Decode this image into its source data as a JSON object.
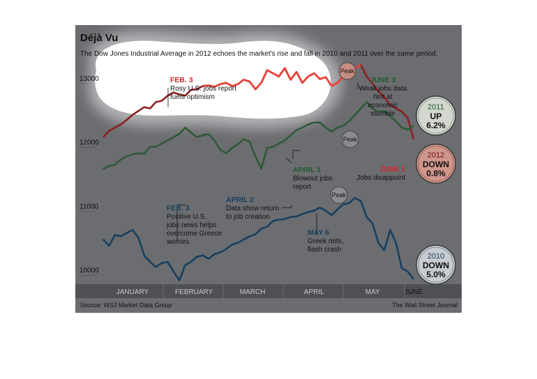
{
  "title": "Déjà Vu",
  "subtitle": "The Dow Jones Industrial Average in 2012 echoes the market's rise and fall in 2010 and 2011 over the same period.",
  "source": "Source: WSJ Market Data Group",
  "credit": "The Wall Street Journal",
  "colors": {
    "background": "#6b6d70",
    "s2012": "#8b1f1f",
    "s2012_highlight": "#e8443c",
    "s2011": "#2f5a37",
    "s2010": "#17405f",
    "axis_band": "#4e5053"
  },
  "annotations": {
    "feb3_2012": {
      "date": "FEB. 3",
      "text": [
        "Rosy U.S. jobs report",
        "fuels optimism"
      ]
    },
    "june3_2011": {
      "date": "JUNE 3",
      "text": [
        "Weak jobs data",
        "hint at",
        "economic",
        "stumble"
      ]
    },
    "april1_2011": {
      "date": "APRIL 1",
      "text": [
        "Blowout jobs",
        "report"
      ]
    },
    "june1_2012": {
      "date": "JUNE 1",
      "text": [
        "Jobs disappoint"
      ]
    },
    "feb3_2010": {
      "date": "FEB. 3",
      "text": [
        "Positive U.S.",
        "jobs news helps",
        "overcome Greece",
        "worries"
      ]
    },
    "april2_2010": {
      "date": "APRIL 2",
      "text": [
        "Data show return",
        "to job creation"
      ]
    },
    "may6_2010": {
      "date": "MAY 6",
      "text": [
        "Greek riots,",
        "flash crash"
      ]
    },
    "peak_label": "Peak"
  },
  "badges": [
    {
      "year": "2011",
      "dir": "UP",
      "pct": "6.2%"
    },
    {
      "year": "2012",
      "dir": "DOWN",
      "pct": "0.8%"
    },
    {
      "year": "2010",
      "dir": "DOWN",
      "pct": "5.0%"
    }
  ],
  "chart_data": {
    "type": "line",
    "x_label_note": "",
    "x_range": [
      0,
      106
    ],
    "x_months": [
      {
        "label": "JANUARY",
        "x": 10
      },
      {
        "label": "FEBRUARY",
        "x": 31
      },
      {
        "label": "MARCH",
        "x": 51
      },
      {
        "label": "APRIL",
        "x": 72
      },
      {
        "label": "MAY",
        "x": 92
      },
      {
        "label": "JUNE",
        "x": 106
      }
    ],
    "y_range": [
      9850,
      13250
    ],
    "y_ticks": [
      10000,
      11000,
      12000,
      13000
    ],
    "series": [
      {
        "name": "2012",
        "color_key": "s2012",
        "values": [
          [
            0,
            12150
          ],
          [
            2,
            12250
          ],
          [
            4,
            12300
          ],
          [
            6,
            12350
          ],
          [
            8,
            12420
          ],
          [
            10,
            12500
          ],
          [
            12,
            12560
          ],
          [
            14,
            12620
          ],
          [
            16,
            12600
          ],
          [
            18,
            12700
          ],
          [
            20,
            12720
          ],
          [
            22,
            12800
          ],
          [
            24,
            12850
          ],
          [
            26,
            12820
          ],
          [
            28,
            12800
          ],
          [
            30,
            12890
          ],
          [
            32,
            12900
          ],
          [
            34,
            12950
          ],
          [
            36,
            12960
          ],
          [
            38,
            12940
          ],
          [
            40,
            12980
          ],
          [
            42,
            13000
          ],
          [
            44,
            12950
          ],
          [
            46,
            12980
          ],
          [
            48,
            13050
          ],
          [
            50,
            13020
          ],
          [
            52,
            12900
          ],
          [
            54,
            13000
          ],
          [
            56,
            13200
          ],
          [
            58,
            13150
          ],
          [
            60,
            13100
          ],
          [
            62,
            13230
          ],
          [
            64,
            13050
          ],
          [
            66,
            13170
          ],
          [
            68,
            13000
          ],
          [
            70,
            13100
          ],
          [
            72,
            13150
          ],
          [
            74,
            13060
          ],
          [
            76,
            13090
          ],
          [
            78,
            12950
          ],
          [
            80,
            13000
          ],
          [
            82,
            13100
          ],
          [
            84,
            13150
          ],
          [
            86,
            13230
          ],
          [
            88,
            13280
          ],
          [
            90,
            13100
          ],
          [
            92,
            12990
          ],
          [
            94,
            12870
          ],
          [
            96,
            12780
          ],
          [
            98,
            12650
          ],
          [
            100,
            12600
          ],
          [
            102,
            12550
          ],
          [
            104,
            12450
          ],
          [
            106,
            12120
          ]
        ]
      },
      {
        "name": "2011",
        "color_key": "s2011",
        "values": [
          [
            0,
            11650
          ],
          [
            2,
            11700
          ],
          [
            4,
            11720
          ],
          [
            6,
            11800
          ],
          [
            8,
            11850
          ],
          [
            10,
            11880
          ],
          [
            12,
            11900
          ],
          [
            14,
            11890
          ],
          [
            16,
            12000
          ],
          [
            18,
            12000
          ],
          [
            20,
            12050
          ],
          [
            22,
            12100
          ],
          [
            24,
            12150
          ],
          [
            26,
            12200
          ],
          [
            28,
            12300
          ],
          [
            30,
            12220
          ],
          [
            32,
            12150
          ],
          [
            34,
            12180
          ],
          [
            36,
            12200
          ],
          [
            38,
            12100
          ],
          [
            40,
            11950
          ],
          [
            42,
            11900
          ],
          [
            44,
            11980
          ],
          [
            46,
            12040
          ],
          [
            48,
            12120
          ],
          [
            50,
            12080
          ],
          [
            52,
            11850
          ],
          [
            54,
            11660
          ],
          [
            56,
            11980
          ],
          [
            58,
            12000
          ],
          [
            60,
            12050
          ],
          [
            62,
            12100
          ],
          [
            64,
            12180
          ],
          [
            66,
            12260
          ],
          [
            68,
            12300
          ],
          [
            70,
            12350
          ],
          [
            72,
            12380
          ],
          [
            74,
            12380
          ],
          [
            76,
            12300
          ],
          [
            78,
            12240
          ],
          [
            80,
            12300
          ],
          [
            82,
            12330
          ],
          [
            84,
            12400
          ],
          [
            86,
            12500
          ],
          [
            88,
            12600
          ],
          [
            90,
            12700
          ],
          [
            92,
            12600
          ],
          [
            94,
            12550
          ],
          [
            96,
            12560
          ],
          [
            98,
            12480
          ],
          [
            100,
            12400
          ],
          [
            102,
            12300
          ],
          [
            104,
            12270
          ],
          [
            106,
            12330
          ]
        ]
      },
      {
        "name": "2010",
        "color_key": "s2010",
        "values": [
          [
            0,
            10550
          ],
          [
            2,
            10450
          ],
          [
            4,
            10620
          ],
          [
            6,
            10600
          ],
          [
            8,
            10650
          ],
          [
            10,
            10700
          ],
          [
            12,
            10580
          ],
          [
            14,
            10300
          ],
          [
            16,
            10200
          ],
          [
            18,
            10120
          ],
          [
            20,
            10180
          ],
          [
            22,
            10200
          ],
          [
            24,
            10050
          ],
          [
            26,
            9910
          ],
          [
            28,
            10150
          ],
          [
            30,
            10200
          ],
          [
            32,
            10280
          ],
          [
            34,
            10300
          ],
          [
            36,
            10250
          ],
          [
            38,
            10320
          ],
          [
            40,
            10350
          ],
          [
            42,
            10400
          ],
          [
            44,
            10470
          ],
          [
            46,
            10500
          ],
          [
            48,
            10550
          ],
          [
            50,
            10600
          ],
          [
            52,
            10630
          ],
          [
            54,
            10720
          ],
          [
            56,
            10750
          ],
          [
            58,
            10840
          ],
          [
            60,
            10860
          ],
          [
            62,
            10870
          ],
          [
            64,
            10900
          ],
          [
            66,
            10910
          ],
          [
            68,
            10950
          ],
          [
            70,
            10980
          ],
          [
            72,
            11000
          ],
          [
            74,
            11050
          ],
          [
            76,
            11000
          ],
          [
            78,
            10930
          ],
          [
            80,
            11020
          ],
          [
            82,
            11100
          ],
          [
            84,
            11120
          ],
          [
            86,
            11200
          ],
          [
            88,
            11150
          ],
          [
            90,
            10900
          ],
          [
            92,
            10800
          ],
          [
            94,
            10500
          ],
          [
            96,
            10380
          ],
          [
            98,
            10700
          ],
          [
            100,
            10500
          ],
          [
            102,
            10100
          ],
          [
            104,
            10050
          ],
          [
            106,
            9930
          ]
        ]
      }
    ],
    "highlight_2012": {
      "x_from": 33,
      "x_to": 88
    }
  }
}
